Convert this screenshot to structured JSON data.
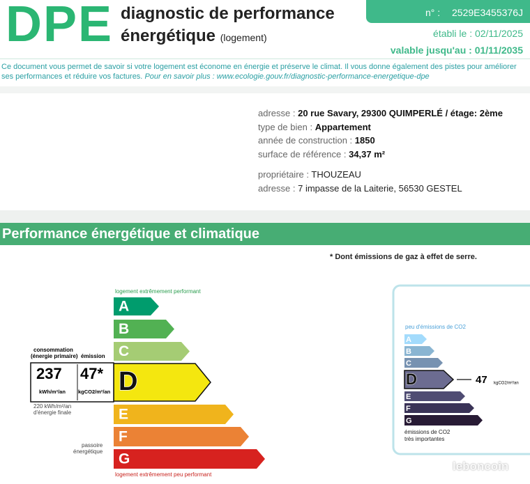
{
  "header": {
    "logo": "DPE",
    "title_line1": "diagnostic de performance",
    "title_line2": "énergétique",
    "subtitle": "(logement)",
    "number_label": "n° :",
    "number": "2529E3455376J",
    "established": "établi le : 02/11/2025",
    "valid_until": "valable jusqu'au : 01/11/2035"
  },
  "intro": {
    "text": "Ce document vous permet de savoir si votre logement est économe en énergie et préserve le climat. Il vous donne également des pistes pour améliorer ses performances et réduire vos factures.",
    "link_text": "Pour en savoir plus : www.ecologie.gouv.fr/diagnostic-performance-energetique-dpe"
  },
  "info": {
    "rows": [
      {
        "label": "adresse :",
        "value": "20 rue Savary, 29300 QUIMPERLÉ / étage: 2ème"
      },
      {
        "label": "type de bien :",
        "value": "Appartement"
      },
      {
        "label": "année de construction :",
        "value": "1850"
      },
      {
        "label": "surface de référence :",
        "value": "34,37  m²"
      }
    ],
    "owner": [
      {
        "label": "propriétaire :",
        "value": "THOUZEAU"
      },
      {
        "label": "adresse :",
        "value": "7 impasse de la Laiterie, 56530 GESTEL"
      }
    ]
  },
  "section": {
    "title": "Performance énergétique et climatique",
    "note": "* Dont émissions de gaz à effet de serre."
  },
  "energy_scale": {
    "top_label": "logement extrêmement performant",
    "bottom_label": "logement extrêmement peu performant",
    "classes": [
      "A",
      "B",
      "C",
      "D",
      "E",
      "F",
      "G"
    ],
    "consumption_label": "consommation",
    "consumption_sub": "(énergie primaire)",
    "emission_label": "émission",
    "consumption": "237",
    "consumption_unit": "kWh/m²/an",
    "emission": "47*",
    "emission_unit": "kgCO2/m²/an",
    "final_energy": "220 kWh/m²/an",
    "final_energy_sub": "d'énergie finale",
    "passoire": "passoire",
    "passoire_sub": "énergétique"
  },
  "co2_scale": {
    "top_label": "peu d'émissions de CO2",
    "classes": [
      "A",
      "B",
      "C",
      "D",
      "E",
      "F",
      "G"
    ],
    "value": "47",
    "unit": "kgCO2/m²/an",
    "bottom_label": "émissions de CO2",
    "bottom_sub": "très importantes"
  },
  "watermark": "leboncoin"
}
